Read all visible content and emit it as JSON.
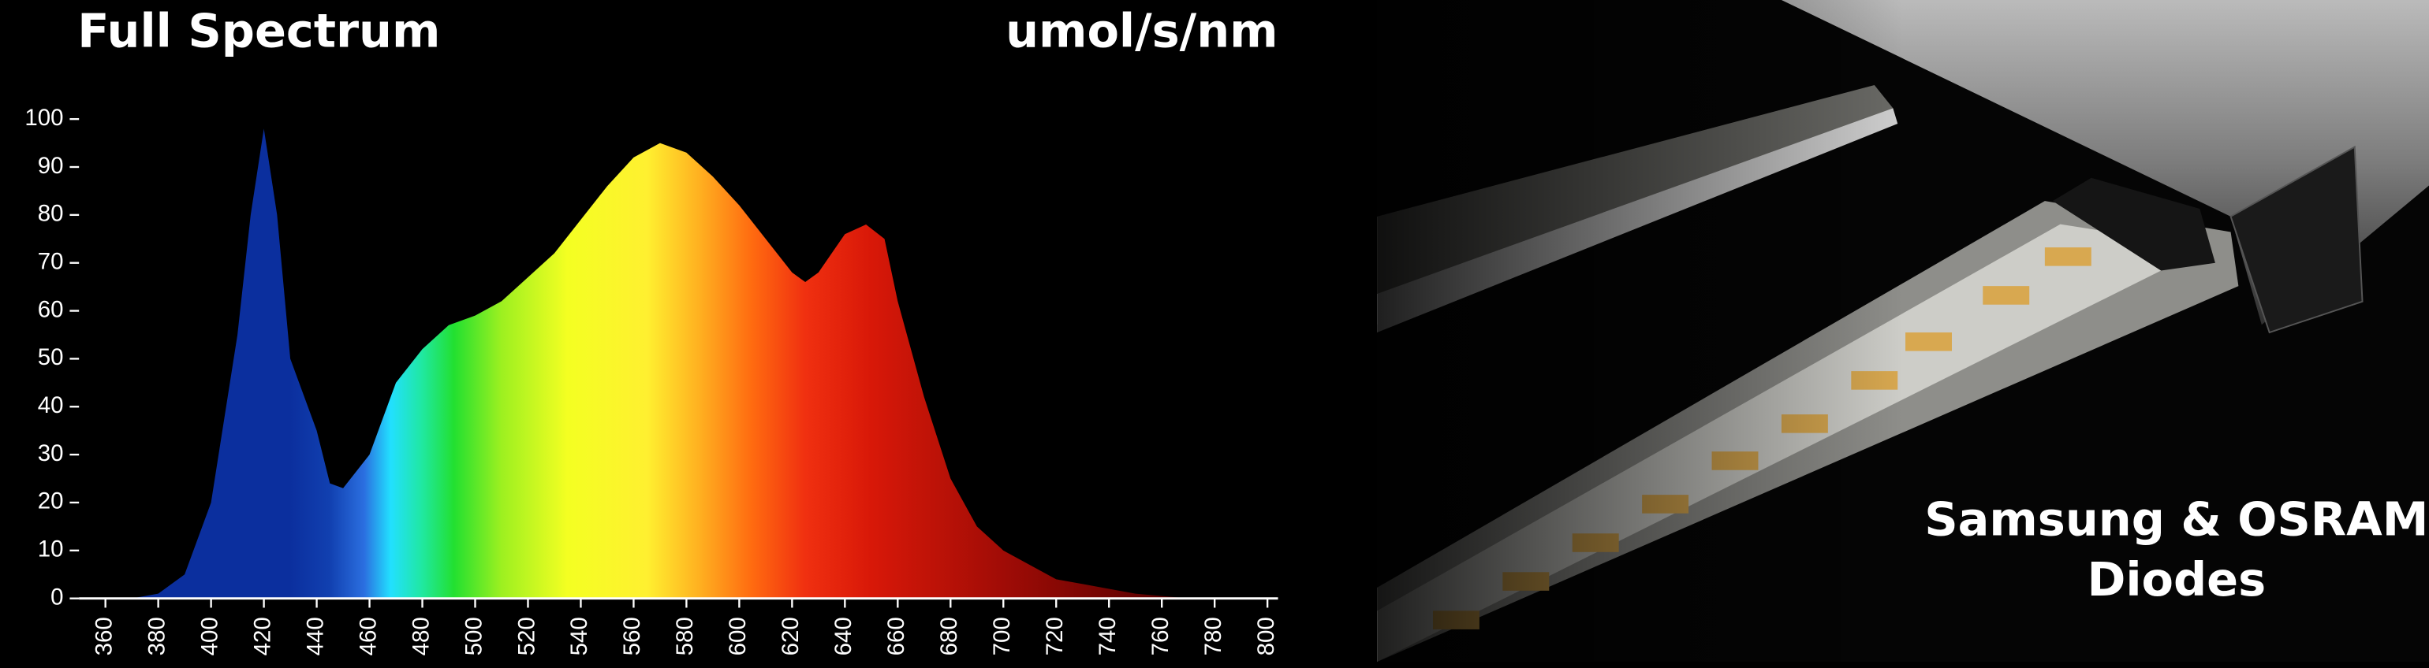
{
  "chart_data": {
    "type": "area",
    "title": "Full Spectrum",
    "unit_label": "umol/s/nm",
    "annotations": [
      "Samsung & OSRAM",
      "Diodes"
    ],
    "x": [
      370,
      380,
      390,
      400,
      410,
      415,
      420,
      425,
      430,
      440,
      445,
      450,
      460,
      470,
      480,
      490,
      500,
      510,
      520,
      530,
      540,
      550,
      560,
      570,
      580,
      590,
      600,
      610,
      620,
      625,
      630,
      640,
      648,
      655,
      660,
      670,
      680,
      690,
      700,
      710,
      720,
      730,
      740,
      750,
      760,
      770
    ],
    "values": [
      0,
      1,
      5,
      20,
      55,
      80,
      98,
      80,
      50,
      35,
      24,
      23,
      30,
      45,
      52,
      57,
      59,
      62,
      67,
      72,
      79,
      86,
      92,
      95,
      93,
      88,
      82,
      75,
      68,
      66,
      68,
      76,
      78,
      75,
      62,
      42,
      25,
      15,
      10,
      7,
      4,
      3,
      2,
      1,
      0.5,
      0
    ],
    "xlim": [
      350,
      804
    ],
    "ylim": [
      0,
      100
    ],
    "xticks": [
      360,
      380,
      400,
      420,
      440,
      460,
      480,
      500,
      520,
      540,
      560,
      580,
      600,
      620,
      640,
      660,
      680,
      700,
      720,
      740,
      760,
      780,
      800
    ],
    "yticks": [
      0,
      10,
      20,
      30,
      40,
      50,
      60,
      70,
      80,
      90,
      100
    ]
  }
}
